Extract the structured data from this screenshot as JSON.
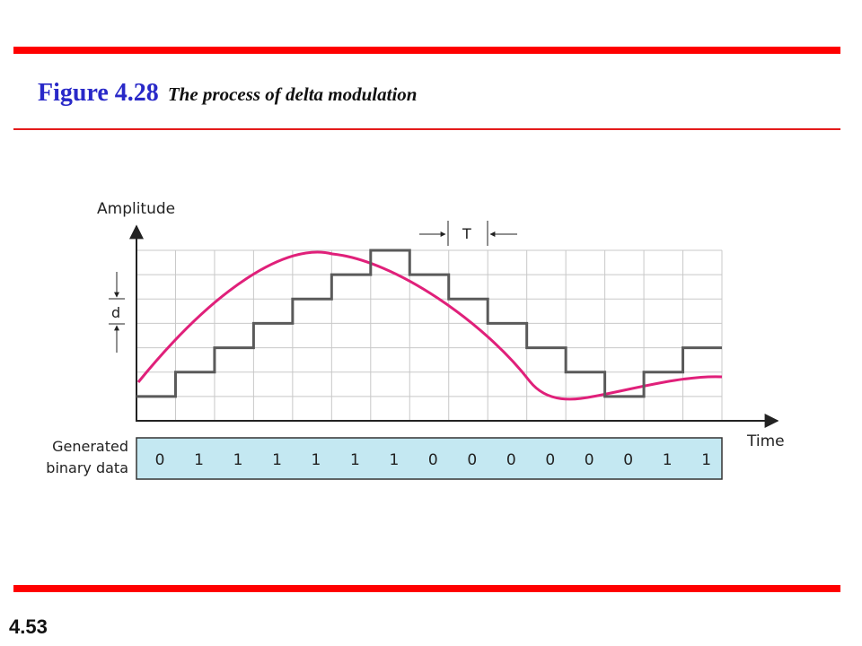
{
  "slide": {
    "figure_label": "Figure 4.28",
    "caption": "The process of delta modulation",
    "page_number": "4.53"
  },
  "diagram": {
    "y_axis_label": "Amplitude",
    "x_axis_label": "Time",
    "step_label": "d",
    "period_label": "T",
    "data_label_line1": "Generated",
    "data_label_line2": "binary data",
    "bits": [
      "0",
      "1",
      "1",
      "1",
      "1",
      "1",
      "1",
      "0",
      "0",
      "0",
      "0",
      "0",
      "0",
      "1",
      "1"
    ],
    "staircase_levels": [
      1,
      2,
      3,
      4,
      5,
      6,
      7,
      6,
      5,
      4,
      3,
      2,
      1,
      2,
      3
    ],
    "colors": {
      "signal": "#e0207a",
      "staircase": "#5a5a5a",
      "grid": "#c8c8c8",
      "data_box": "#c4e8f2",
      "accent_bar": "#ff0000"
    }
  }
}
